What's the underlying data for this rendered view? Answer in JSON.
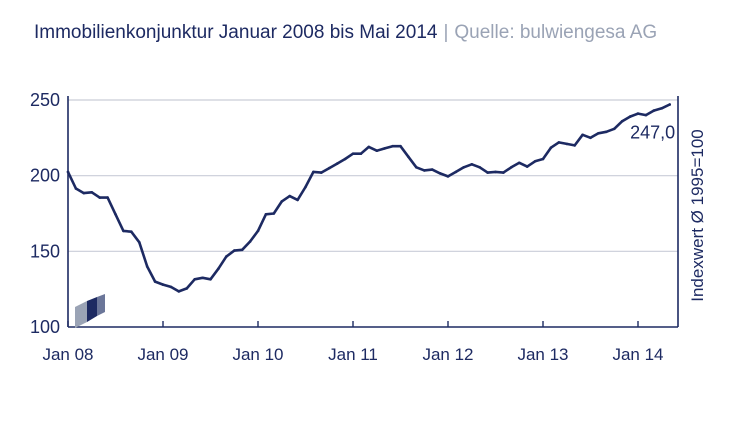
{
  "header": {
    "title": "Immobilienkonjunktur Januar 2008 bis Mai 2014",
    "separator": "|",
    "source": "Quelle: bulwiengesa AG"
  },
  "colors": {
    "line": "#1d2a62",
    "grid": "#c9cdd8",
    "text": "#1d2a62",
    "source_text": "#9aa3b5"
  },
  "chart_data": {
    "type": "line",
    "title": "Immobilienkonjunktur Januar 2008 bis Mai 2014",
    "xlabel": "",
    "ylabel": "Indexwert Ø 1995=100",
    "ylim": [
      100,
      250
    ],
    "yticks": [
      100,
      150,
      200,
      250
    ],
    "xticks": [
      "Jan 08",
      "Jan 09",
      "Jan 10",
      "Jan 11",
      "Jan 12",
      "Jan 13",
      "Jan 14"
    ],
    "grid": "horizontal",
    "annotation": "247,0",
    "series": [
      {
        "values": [
          202.5,
          191.5,
          188.5,
          189,
          185.5,
          185.5,
          174.5,
          163.5,
          163,
          156,
          140,
          130,
          128,
          126.5,
          123.5,
          125.5,
          131.5,
          132.5,
          131.5,
          138.5,
          146.5,
          150.5,
          151,
          156.5,
          163.5,
          174.5,
          175,
          183,
          186.5,
          184,
          192.5,
          202.5,
          202,
          205,
          208,
          211,
          214.5,
          214.5,
          219,
          216.5,
          218,
          219.5,
          219.5,
          212.5,
          205.5,
          203.5,
          204,
          201.5,
          199.5,
          202.5,
          205.5,
          207.5,
          205.5,
          202,
          202.5,
          202,
          205.5,
          208.5,
          206,
          209.5,
          211,
          218.5,
          222,
          221,
          220,
          227,
          225,
          228,
          229,
          231,
          236,
          239,
          241,
          240,
          243,
          244.5,
          247
        ]
      }
    ]
  }
}
